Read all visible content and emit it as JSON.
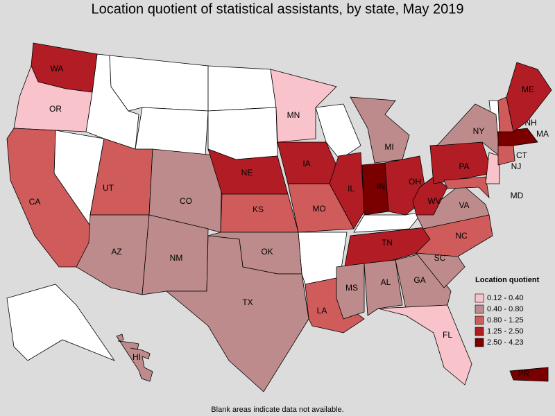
{
  "title": "Location quotient of statistical assistants, by state, May 2019",
  "footnote": "Blank areas indicate data not available.",
  "legend": {
    "title": "Location quotient",
    "items": [
      {
        "label": "0.12 - 0.40",
        "color": "#f9c3cb"
      },
      {
        "label": "0.40 - 0.80",
        "color": "#bd8b8b"
      },
      {
        "label": "0.80 - 1.25",
        "color": "#d05b5b"
      },
      {
        "label": "1.25 - 2.50",
        "color": "#b21d25"
      },
      {
        "label": "2.50 - 4.23",
        "color": "#7a0000"
      }
    ]
  },
  "states": [
    {
      "label": "WA",
      "bin": 3
    },
    {
      "label": "OR",
      "bin": 0
    },
    {
      "label": "CA",
      "bin": 2
    },
    {
      "label": "UT",
      "bin": 2
    },
    {
      "label": "AZ",
      "bin": 1
    },
    {
      "label": "CO",
      "bin": 1
    },
    {
      "label": "NM",
      "bin": 1
    },
    {
      "label": "NE",
      "bin": 3
    },
    {
      "label": "KS",
      "bin": 2
    },
    {
      "label": "OK",
      "bin": 1
    },
    {
      "label": "TX",
      "bin": 1
    },
    {
      "label": "MN",
      "bin": 0
    },
    {
      "label": "IA",
      "bin": 3
    },
    {
      "label": "MO",
      "bin": 2
    },
    {
      "label": "LA",
      "bin": 2
    },
    {
      "label": "IL",
      "bin": 3
    },
    {
      "label": "MI",
      "bin": 1
    },
    {
      "label": "IN",
      "bin": 4
    },
    {
      "label": "OH",
      "bin": 3
    },
    {
      "label": "TN",
      "bin": 3
    },
    {
      "label": "MS",
      "bin": 1
    },
    {
      "label": "AL",
      "bin": 1
    },
    {
      "label": "GA",
      "bin": 1
    },
    {
      "label": "FL",
      "bin": 0
    },
    {
      "label": "SC",
      "bin": 1
    },
    {
      "label": "NC",
      "bin": 2
    },
    {
      "label": "VA",
      "bin": 1
    },
    {
      "label": "WV",
      "bin": 3
    },
    {
      "label": "PA",
      "bin": 3
    },
    {
      "label": "NY",
      "bin": 1
    },
    {
      "label": "MD",
      "bin": 2
    },
    {
      "label": "NJ",
      "bin": 0
    },
    {
      "label": "CT",
      "bin": 2
    },
    {
      "label": "MA",
      "bin": 4
    },
    {
      "label": "NH",
      "bin": 2
    },
    {
      "label": "ME",
      "bin": 3
    },
    {
      "label": "HI",
      "bin": 1
    },
    {
      "label": "PR",
      "bin": 4
    }
  ]
}
